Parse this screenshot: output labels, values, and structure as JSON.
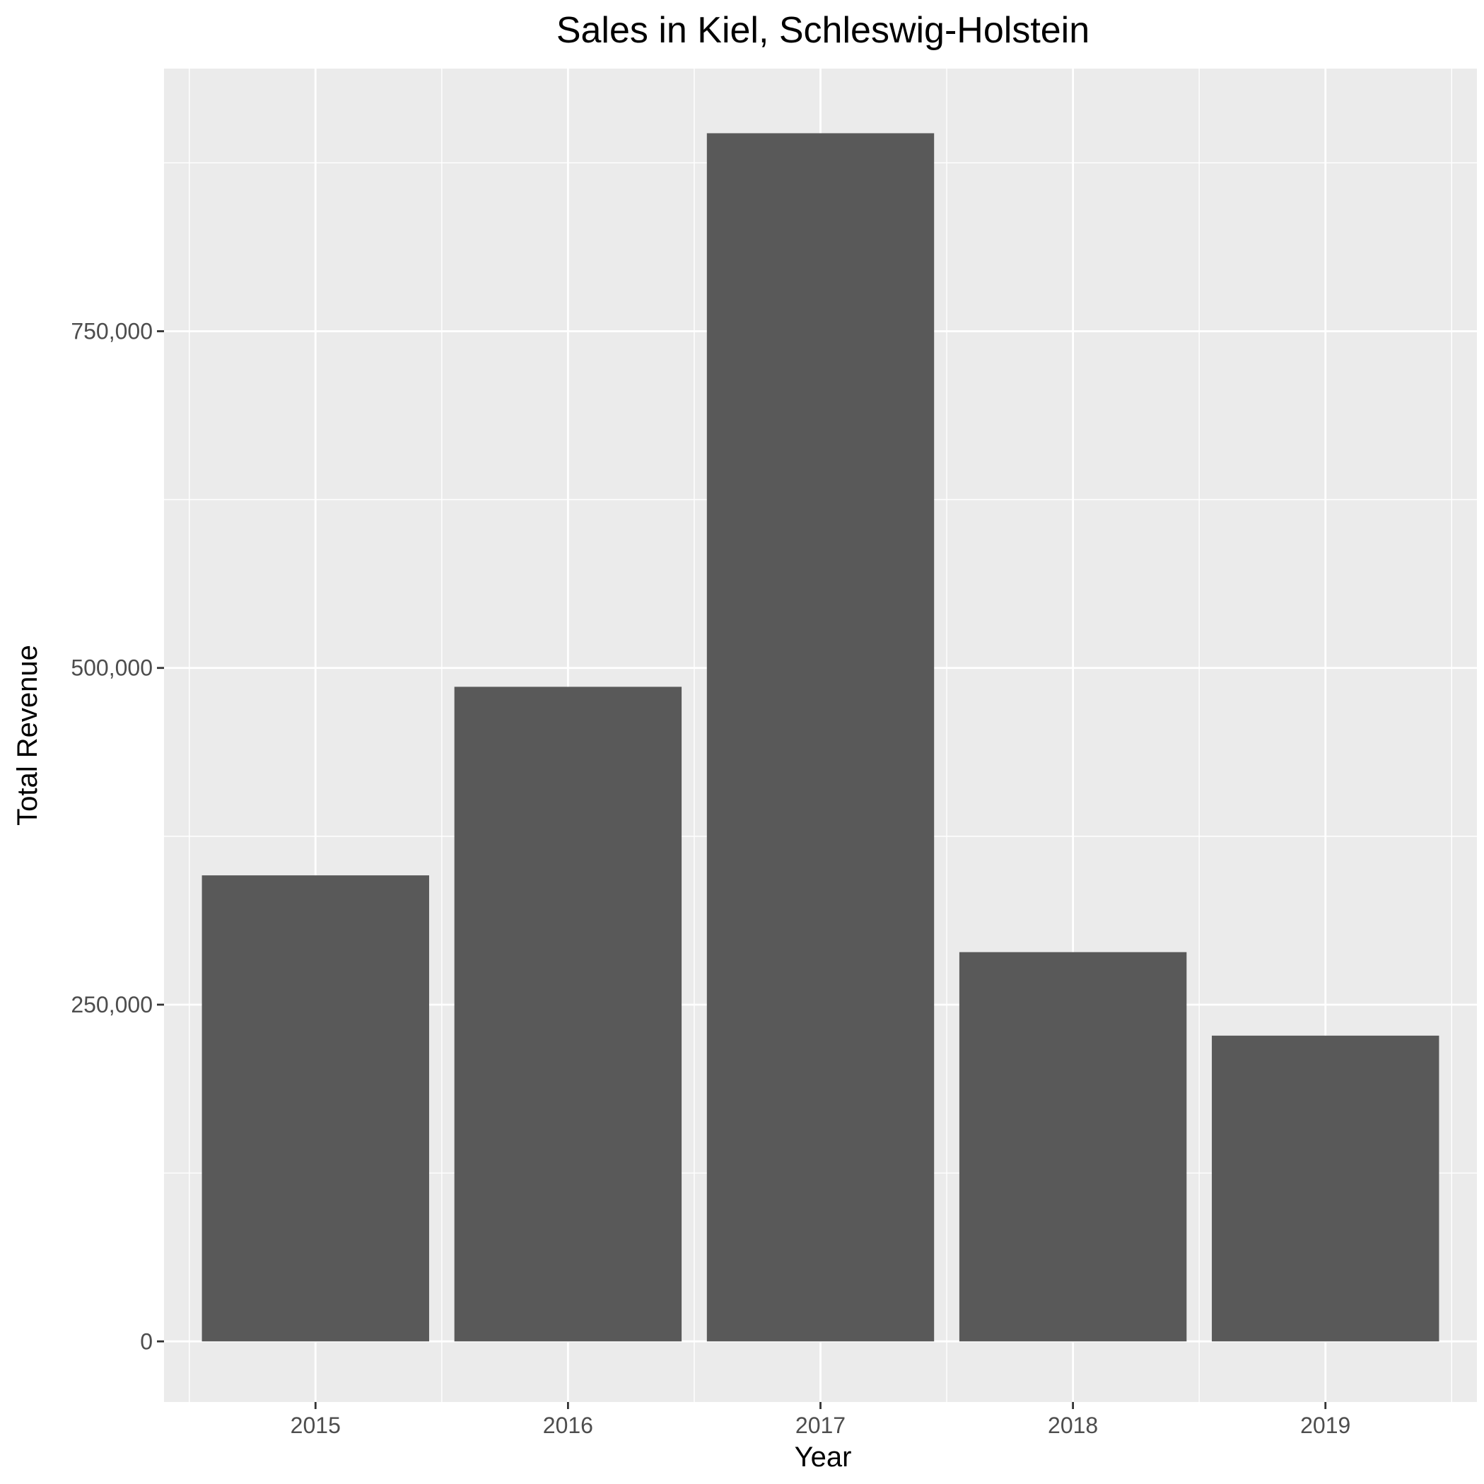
{
  "chart_data": {
    "type": "bar",
    "title": "Sales in Kiel, Schleswig-Holstein",
    "xlabel": "Year",
    "ylabel": "Total Revenue",
    "categories": [
      "2015",
      "2016",
      "2017",
      "2018",
      "2019"
    ],
    "values": [
      346000,
      486000,
      897000,
      289000,
      227000
    ],
    "ylim": [
      -45000,
      945000
    ],
    "yticks": [
      0,
      250000,
      500000,
      750000
    ],
    "ytick_labels": [
      "0",
      "250,000",
      "500,000",
      "750,000"
    ],
    "grid": true,
    "legend": "none",
    "colors": {
      "panel_background": "#ebebeb",
      "grid": "#ffffff",
      "bar": "#595959",
      "tick": "#333333"
    }
  }
}
